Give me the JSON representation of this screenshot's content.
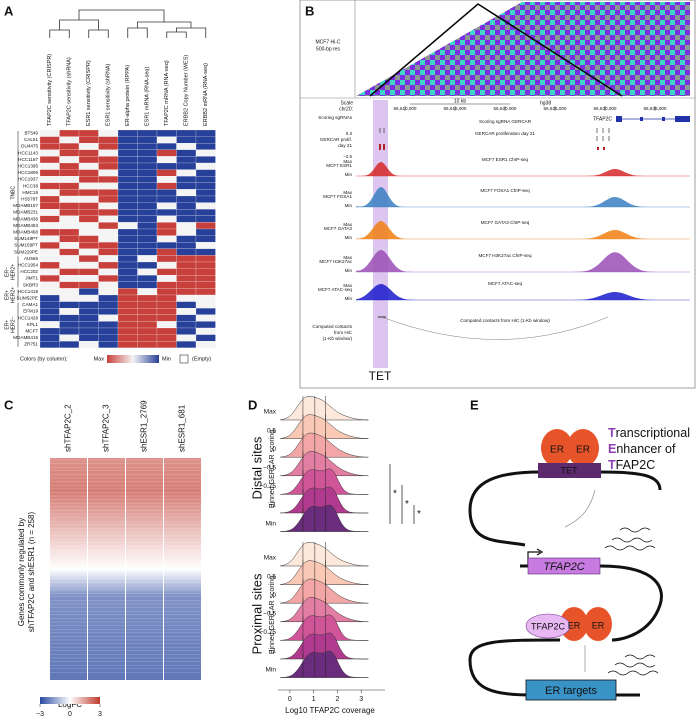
{
  "panel_labels": [
    "A",
    "B",
    "C",
    "D",
    "E"
  ],
  "panel_a": {
    "type": "heatmap",
    "columns": [
      "TFAP2C sensitivity (CRISPR)",
      "TFAP2C sensitivity (shRNA)",
      "ESR1 sensitivity (CRISPR)",
      "ESR1 sensitivity (shRNA)",
      "ER-alpha protein (RPPA)",
      "ESR1 mRNA (RNA-seq)",
      "TFAP2C mRNA (RNA-seq)",
      "ERBB2 Copy Number (WES)",
      "ERBB2 mRNA (RNA-seq)"
    ],
    "rows": [
      "BT549",
      "CAL51",
      "DU4475",
      "HCC1143",
      "HCC1187",
      "HCC1395",
      "HCC1806",
      "HCC1937",
      "HCC38",
      "HMC18",
      "HS578T",
      "MDAMB157",
      "MDAMB231",
      "MDAMB436",
      "MDAMB453",
      "MDAMB468",
      "SUM149PT",
      "SUM159PT",
      "SUM229PE",
      "AU565",
      "HCC1954",
      "HCC202",
      "JIMT1",
      "SKBR3",
      "HCC1419",
      "SUM52PE",
      "CAMA1",
      "EFM19",
      "HCC1428",
      "KPL1",
      "MCF7",
      "MDAMB415",
      "ZR751"
    ],
    "groups": [
      {
        "lines": [
          "TNBC"
        ],
        "count": 19
      },
      {
        "lines": [
          "ER−",
          "HER2+"
        ],
        "count": 5
      },
      {
        "lines": [
          "ER+",
          "HER2+"
        ],
        "count": 2
      },
      {
        "lines": [
          "ER+",
          "HER2−"
        ],
        "count": 7
      }
    ],
    "values": [
      [
        0,
        1,
        1,
        0,
        -1,
        -1,
        -1,
        -1,
        -1
      ],
      [
        1,
        0,
        1,
        1,
        -1,
        -1,
        0,
        -1,
        -1
      ],
      [
        1,
        1,
        0,
        1,
        -1,
        -1,
        -1,
        0,
        -1
      ],
      [
        0,
        1,
        1,
        0,
        -1,
        -1,
        1,
        -1,
        0
      ],
      [
        1,
        0,
        1,
        1,
        -1,
        -1,
        0,
        -1,
        -1
      ],
      [
        0,
        1,
        0,
        1,
        -1,
        -1,
        -1,
        -1,
        0
      ],
      [
        1,
        1,
        1,
        0,
        -1,
        -1,
        1,
        0,
        -1
      ],
      [
        0,
        0,
        1,
        1,
        -1,
        -1,
        0,
        -1,
        -1
      ],
      [
        1,
        1,
        0,
        0,
        -1,
        -1,
        1,
        -1,
        -1
      ],
      [
        0,
        1,
        1,
        1,
        -1,
        -1,
        -1,
        0,
        -1
      ],
      [
        1,
        0,
        0,
        1,
        -1,
        -1,
        -1,
        -1,
        -1
      ],
      [
        1,
        1,
        1,
        0,
        -1,
        -1,
        0,
        -1,
        0
      ],
      [
        0,
        1,
        1,
        1,
        -1,
        -1,
        -1,
        -1,
        -1
      ],
      [
        1,
        0,
        1,
        0,
        -1,
        -1,
        0,
        -1,
        -1
      ],
      [
        0,
        0,
        0,
        1,
        0,
        -1,
        1,
        0,
        1
      ],
      [
        1,
        1,
        0,
        0,
        -1,
        -1,
        1,
        0,
        -1
      ],
      [
        0,
        1,
        1,
        0,
        -1,
        -1,
        0,
        -1,
        -1
      ],
      [
        1,
        0,
        1,
        1,
        -1,
        -1,
        -1,
        -1,
        0
      ],
      [
        0,
        1,
        0,
        1,
        -1,
        -1,
        1,
        -1,
        -1
      ],
      [
        0,
        0,
        1,
        0,
        -1,
        0,
        1,
        1,
        1
      ],
      [
        1,
        0,
        0,
        1,
        -1,
        -1,
        0,
        1,
        1
      ],
      [
        0,
        1,
        1,
        0,
        -1,
        0,
        1,
        1,
        1
      ],
      [
        1,
        0,
        0,
        1,
        -1,
        -1,
        0,
        1,
        1
      ],
      [
        0,
        1,
        1,
        0,
        -1,
        -1,
        1,
        1,
        1
      ],
      [
        0,
        0,
        -1,
        0,
        1,
        0,
        1,
        1,
        1
      ],
      [
        -1,
        0,
        0,
        -1,
        1,
        1,
        1,
        0,
        0
      ],
      [
        -1,
        -1,
        -1,
        -1,
        1,
        1,
        1,
        -1,
        0
      ],
      [
        -1,
        0,
        -1,
        -1,
        1,
        1,
        1,
        0,
        -1
      ],
      [
        -1,
        -1,
        -1,
        0,
        1,
        1,
        1,
        -1,
        0
      ],
      [
        0,
        -1,
        -1,
        -1,
        1,
        1,
        0,
        -1,
        -1
      ],
      [
        -1,
        -1,
        -1,
        -1,
        1,
        1,
        1,
        -1,
        0
      ],
      [
        -1,
        0,
        -1,
        -1,
        1,
        1,
        1,
        0,
        -1
      ],
      [
        -1,
        -1,
        0,
        -1,
        1,
        1,
        1,
        -1,
        0
      ]
    ],
    "colors": {
      "max": "#c8403b",
      "mid": "#f4f4f4",
      "min": "#27409a"
    },
    "legend": {
      "title": "Colors (by column):",
      "max": "Max",
      "min": "Min",
      "empty": "(Empty)"
    }
  },
  "panel_b": {
    "hic_label": [
      "MCF7 Hi-C",
      "500-bp res"
    ],
    "scale": "Scale",
    "chrom": "chr20:",
    "scale_bar": "10 kb",
    "genome": "hg38",
    "xlim": [
      56601000,
      56638500
    ],
    "ticks": [
      {
        "value": 56610000,
        "label": "56,610,000"
      },
      {
        "value": 56615000,
        "label": "56,615,000"
      },
      {
        "value": 56620000,
        "label": "56,620,000"
      },
      {
        "value": 56625000,
        "label": "56,625,000"
      },
      {
        "value": 56630000,
        "label": "56,630,000"
      },
      {
        "value": 56635000,
        "label": "56,635,000"
      }
    ],
    "gene": "TFAP2C",
    "sgrna_scale": "0.3",
    "gercar_scale": "−2.5",
    "tracks": [
      {
        "name": [
          "Scoring sgRNAs"
        ],
        "title": "Scoring sgRNA GERCAR",
        "color": "#222222"
      },
      {
        "name": [
          "GERCAR prolif.",
          "day 21"
        ],
        "title": "GERCAR proliferation day 21",
        "color": "#b22222"
      },
      {
        "name": [
          "MCF7 ESR1"
        ],
        "title": "MCF7 ESR1 ChIP-seq",
        "color": "#d62728"
      },
      {
        "name": [
          "MCF7 FOXA1"
        ],
        "title": "MCF7 FOXA1 ChIP-seq",
        "color": "#3a7fc1"
      },
      {
        "name": [
          "MCF7 GATA3"
        ],
        "title": "MCF7 GATA3 ChIP-seq",
        "color": "#f07f12"
      },
      {
        "name": [
          "MCF7 H3K27ac"
        ],
        "title": "MCF7 H3K27ac ChIP-seq",
        "color": "#9b4fb5"
      },
      {
        "name": [
          "MCF7 ATAC-seq"
        ],
        "title": "MCF7 ATAC-seq",
        "color": "#1a1acc"
      },
      {
        "name": [
          "Computed contacts",
          "from HiC",
          "(1-Kb window)"
        ],
        "title": "Computed contacts from HiC (1-Kb window)",
        "color": "#555555"
      }
    ],
    "max": "Max",
    "min": "Min",
    "highlight": "TET"
  },
  "panel_c": {
    "type": "heatmap",
    "columns": [
      "shTFAP2C_2",
      "shTFAP2C_3",
      "shESR1_2769",
      "shESR1_681"
    ],
    "ylabel": [
      "Genes commonly regulated by",
      "shTFAP2C and shESR1 (n = 258)"
    ],
    "colorbar": {
      "title": "LogFC",
      "lim": [
        -3,
        3
      ],
      "ticks": [
        {
          "value": -3,
          "label": "−3"
        },
        0,
        3
      ],
      "colors": [
        "#2b4aa0",
        "#ffffff",
        "#c0392b"
      ]
    }
  },
  "panel_d": {
    "type": "ridgeline",
    "panels": [
      "Distal sites",
      "Proximal sites"
    ],
    "ylabel": "Binned GERCAR scoring",
    "bins": [
      "Max",
      "0.5",
      "0",
      "−0.5",
      "−0.75",
      "−1",
      "Min"
    ],
    "colors": [
      "#fde8dc",
      "#f9c9b6",
      "#f3a6a6",
      "#e27ea2",
      "#cf5598",
      "#b03a8e",
      "#6a2c7c"
    ],
    "xlabel": "Log10 TFAP2C coverage",
    "xlim": [
      -0.5,
      4
    ],
    "xticks": [
      0,
      1,
      2,
      3
    ],
    "significance": [
      "*",
      "*",
      "*"
    ]
  },
  "panel_e": {
    "title": [
      {
        "initial": "T",
        "rest": "ranscriptional"
      },
      {
        "initial": "E",
        "rest": "nhancer of"
      },
      {
        "initial": "T",
        "rest": "FAP2C"
      }
    ],
    "er": "ER",
    "enhancer": "TET",
    "gene": "TFAP2C",
    "factor": "TFAP2C",
    "targets": "ER targets"
  }
}
